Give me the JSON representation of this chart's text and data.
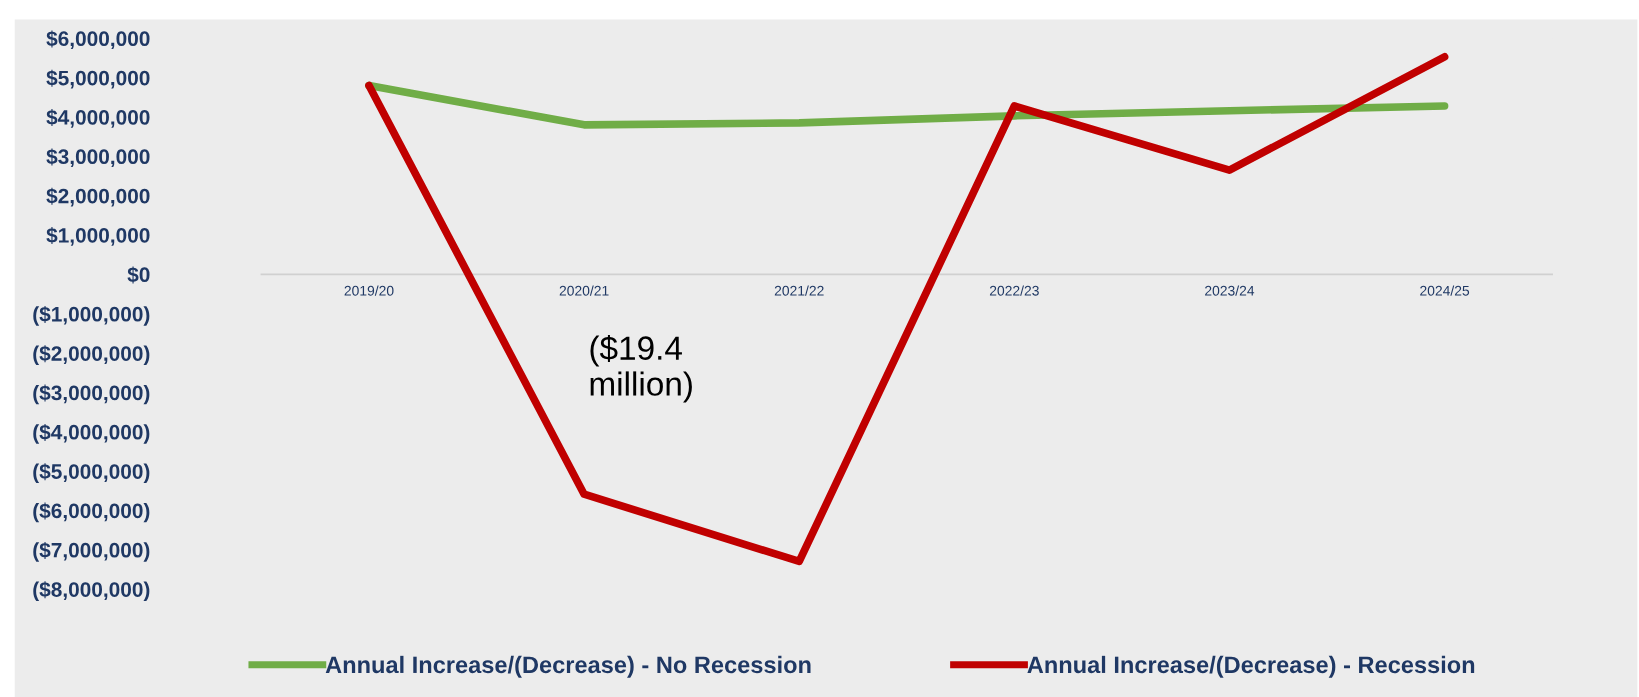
{
  "chart_data": {
    "type": "line",
    "categories": [
      "2019/20",
      "2020/21",
      "2021/22",
      "2022/23",
      "2023/24",
      "2024/25"
    ],
    "series": [
      {
        "name": "Annual Increase/(Decrease) - No Recession",
        "color": "#70ad47",
        "values": [
          4800000,
          3800000,
          3850000,
          4030000,
          4160000,
          4280000
        ]
      },
      {
        "name": "Annual Increase/(Decrease) - Recession",
        "color": "#c00000",
        "values": [
          4800000,
          -5590000,
          -7300000,
          4280000,
          2650000,
          5530000
        ]
      }
    ],
    "ylim": [
      -8000000,
      6000000
    ],
    "yticks": [
      {
        "value": 6000000,
        "label": "$6,000,000"
      },
      {
        "value": 5000000,
        "label": "$5,000,000"
      },
      {
        "value": 4000000,
        "label": "$4,000,000"
      },
      {
        "value": 3000000,
        "label": "$3,000,000"
      },
      {
        "value": 2000000,
        "label": "$2,000,000"
      },
      {
        "value": 1000000,
        "label": "$1,000,000"
      },
      {
        "value": 0,
        "label": "$0"
      },
      {
        "value": -1000000,
        "label": "($1,000,000)"
      },
      {
        "value": -2000000,
        "label": "($2,000,000)"
      },
      {
        "value": -3000000,
        "label": "($3,000,000)"
      },
      {
        "value": -4000000,
        "label": "($4,000,000)"
      },
      {
        "value": -5000000,
        "label": "($5,000,000)"
      },
      {
        "value": -6000000,
        "label": "($6,000,000)"
      },
      {
        "value": -7000000,
        "label": "($7,000,000)"
      },
      {
        "value": -8000000,
        "label": "($8,000,000)"
      }
    ],
    "annotations": [
      "($19.4\nmillion)"
    ],
    "legend": "bottom",
    "grid": false,
    "marker": "none",
    "line_style": "solid"
  }
}
